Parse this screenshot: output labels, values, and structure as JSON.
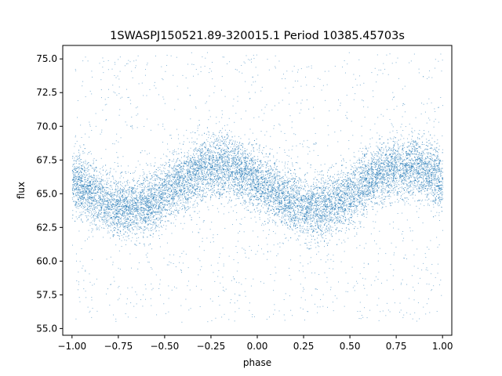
{
  "chart_data": {
    "type": "scatter",
    "title": "1SWASPJ150521.89-320015.1 Period 10385.45703s",
    "xlabel": "phase",
    "ylabel": "flux",
    "xlim": [
      -1.05,
      1.05
    ],
    "ylim": [
      54.5,
      76.0
    ],
    "xticks": [
      -1.0,
      -0.75,
      -0.5,
      -0.25,
      0.0,
      0.25,
      0.5,
      0.75,
      1.0
    ],
    "xtick_labels": [
      "−1.00",
      "−0.75",
      "−0.50",
      "−0.25",
      "0.00",
      "0.25",
      "0.50",
      "0.75",
      "1.00"
    ],
    "yticks": [
      55.0,
      57.5,
      60.0,
      62.5,
      65.0,
      67.5,
      70.0,
      72.5,
      75.0
    ],
    "ytick_labels": [
      "55.0",
      "57.5",
      "60.0",
      "62.5",
      "65.0",
      "67.5",
      "70.0",
      "72.5",
      "75.0"
    ],
    "grid": false,
    "marker_color": "#1f77b4",
    "model": {
      "mean_flux": 65.5,
      "amplitude": 1.5,
      "peak_phases": [
        -0.2,
        0.8
      ],
      "trough_phases": [
        -0.7,
        0.3
      ],
      "scatter_sigma": 1.1,
      "outlier_range": [
        55.5,
        75.5
      ]
    }
  }
}
